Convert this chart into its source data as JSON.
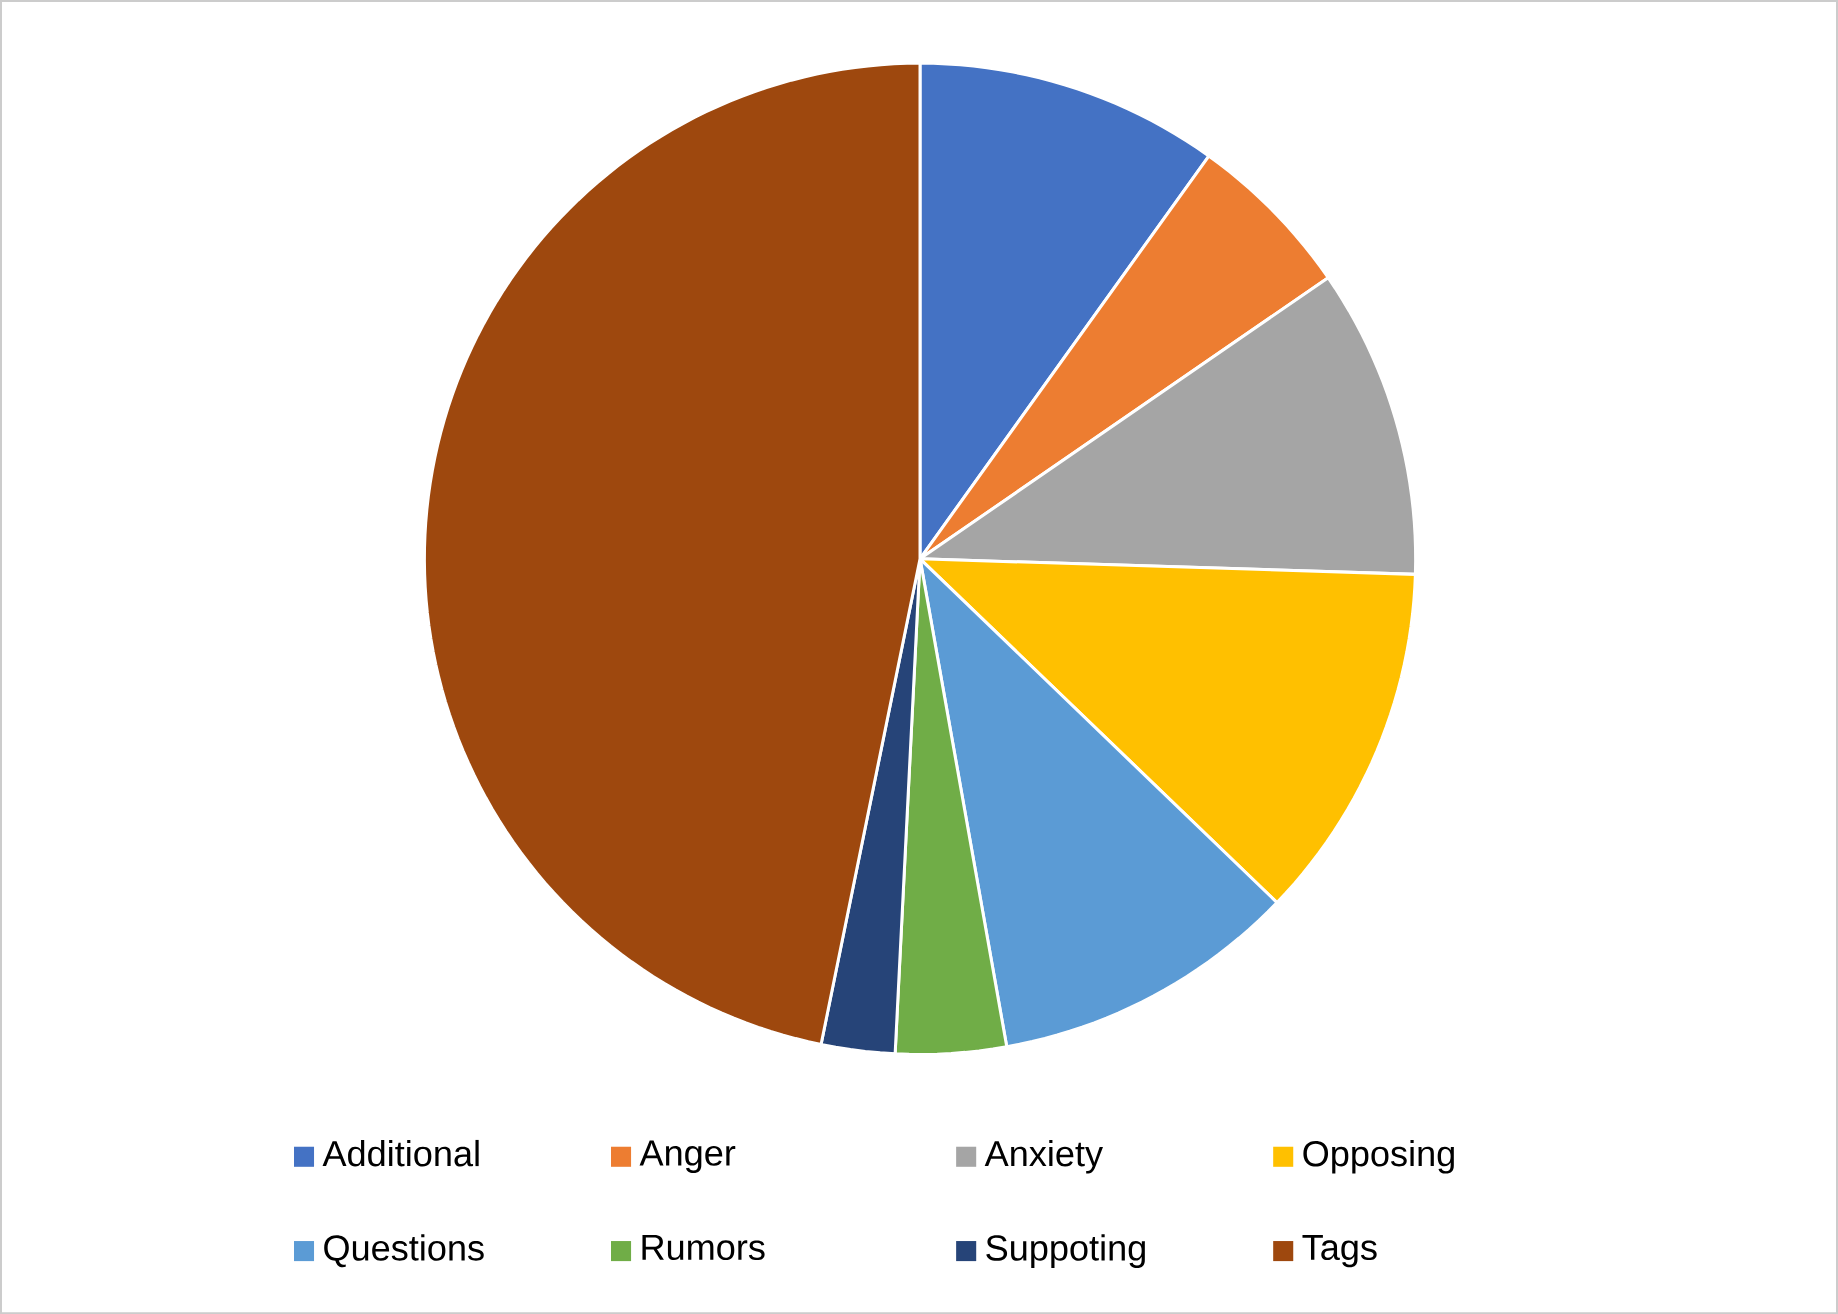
{
  "chart_data": {
    "type": "pie",
    "categories": [
      "Additional",
      "Anger",
      "Anxiety",
      "Opposing",
      "Questions",
      "Rumors",
      "Suppoting",
      "Tags"
    ],
    "values": [
      9.9,
      5.5,
      10.1,
      11.7,
      10.0,
      3.6,
      2.4,
      46.8
    ],
    "colors": [
      "#4472c4",
      "#ed7d31",
      "#a5a5a5",
      "#ffc000",
      "#5b9bd5",
      "#70ad47",
      "#264478",
      "#9e480e"
    ],
    "legend": "bottom"
  }
}
